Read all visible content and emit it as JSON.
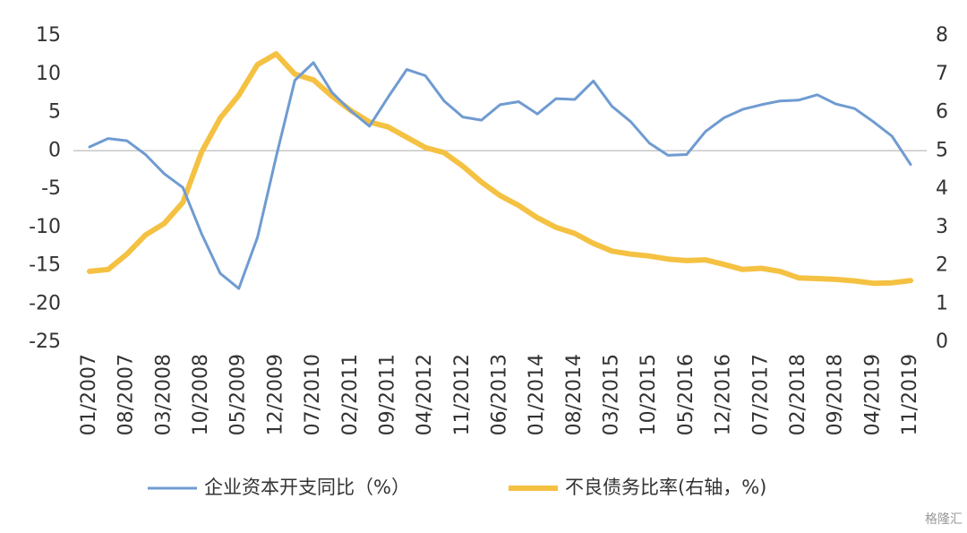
{
  "chart_data": {
    "type": "line",
    "categories": [
      "01/2007",
      null,
      "08/2007",
      null,
      "03/2008",
      null,
      "10/2008",
      null,
      "05/2009",
      null,
      "12/2009",
      null,
      "07/2010",
      null,
      "02/2011",
      null,
      "09/2011",
      null,
      "04/2012",
      null,
      "11/2012",
      null,
      "06/2013",
      null,
      "01/2014",
      null,
      "08/2014",
      null,
      "03/2015",
      null,
      "10/2015",
      null,
      "05/2016",
      null,
      "12/2016",
      null,
      "07/2017",
      null,
      "02/2018",
      null,
      "09/2018",
      null,
      "04/2019",
      null,
      "11/2019"
    ],
    "series": [
      {
        "name": "企业资本开支同比（%）",
        "color": "#6f9bd1",
        "axis": "y",
        "values": [
          0.5,
          1.6,
          1.3,
          -0.5,
          -3.0,
          -4.8,
          -10.8,
          -16.0,
          -18.0,
          -11.3,
          -0.8,
          9.2,
          11.5,
          7.6,
          5.2,
          3.2,
          7.0,
          10.6,
          9.8,
          6.5,
          4.4,
          4.0,
          6.0,
          6.4,
          4.8,
          6.8,
          6.7,
          9.1,
          5.8,
          3.8,
          1.0,
          -0.6,
          -0.5,
          2.5,
          4.3,
          5.4,
          6.0,
          6.5,
          6.6,
          7.3,
          6.1,
          5.5,
          3.8,
          1.9,
          -1.8
        ]
      },
      {
        "name": "不良债务比率(右轴，%)",
        "color": "#f5c142",
        "axis": "y2",
        "values": [
          1.85,
          1.9,
          2.3,
          2.8,
          3.1,
          3.65,
          4.96,
          5.85,
          6.45,
          7.25,
          7.53,
          7.0,
          6.85,
          6.42,
          6.05,
          5.75,
          5.62,
          5.35,
          5.08,
          4.95,
          4.6,
          4.18,
          3.83,
          3.57,
          3.25,
          3.0,
          2.84,
          2.58,
          2.38,
          2.3,
          2.25,
          2.17,
          2.13,
          2.15,
          2.03,
          1.9,
          1.93,
          1.85,
          1.68,
          1.66,
          1.64,
          1.6,
          1.54,
          1.55,
          1.61
        ]
      }
    ],
    "ylim": [
      -25,
      15
    ],
    "yticks": [
      -25,
      -20,
      -15,
      -10,
      -5,
      0,
      5,
      10,
      15
    ],
    "y2lim": [
      0,
      8
    ],
    "y2ticks": [
      0,
      1,
      2,
      3,
      4,
      5,
      6,
      7,
      8
    ],
    "grid": false,
    "legend": "bottom",
    "watermark": "格隆汇"
  }
}
